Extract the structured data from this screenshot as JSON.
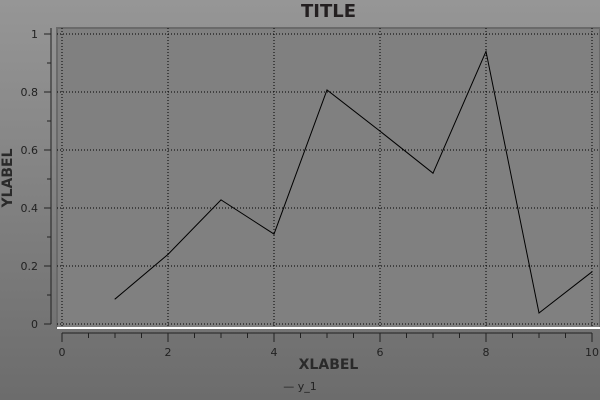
{
  "chart_data": {
    "type": "line",
    "title": "TITLE",
    "xlabel": "XLABEL",
    "ylabel": "YLABEL",
    "xlim": [
      0,
      10
    ],
    "ylim": [
      0,
      1
    ],
    "x_ticks": [
      "0",
      "2",
      "4",
      "6",
      "8",
      "10"
    ],
    "y_ticks": [
      "0",
      "0.2",
      "0.4",
      "0.6",
      "0.8",
      "1"
    ],
    "grid": true,
    "legend_position": "bottom",
    "series": [
      {
        "name": "y_1",
        "color": "#000000",
        "x": [
          1,
          2,
          3,
          4,
          5,
          6,
          7,
          8,
          9,
          10
        ],
        "y": [
          0.086,
          0.24,
          0.428,
          0.31,
          0.807,
          0.665,
          0.52,
          0.94,
          0.038,
          0.18
        ]
      }
    ]
  }
}
